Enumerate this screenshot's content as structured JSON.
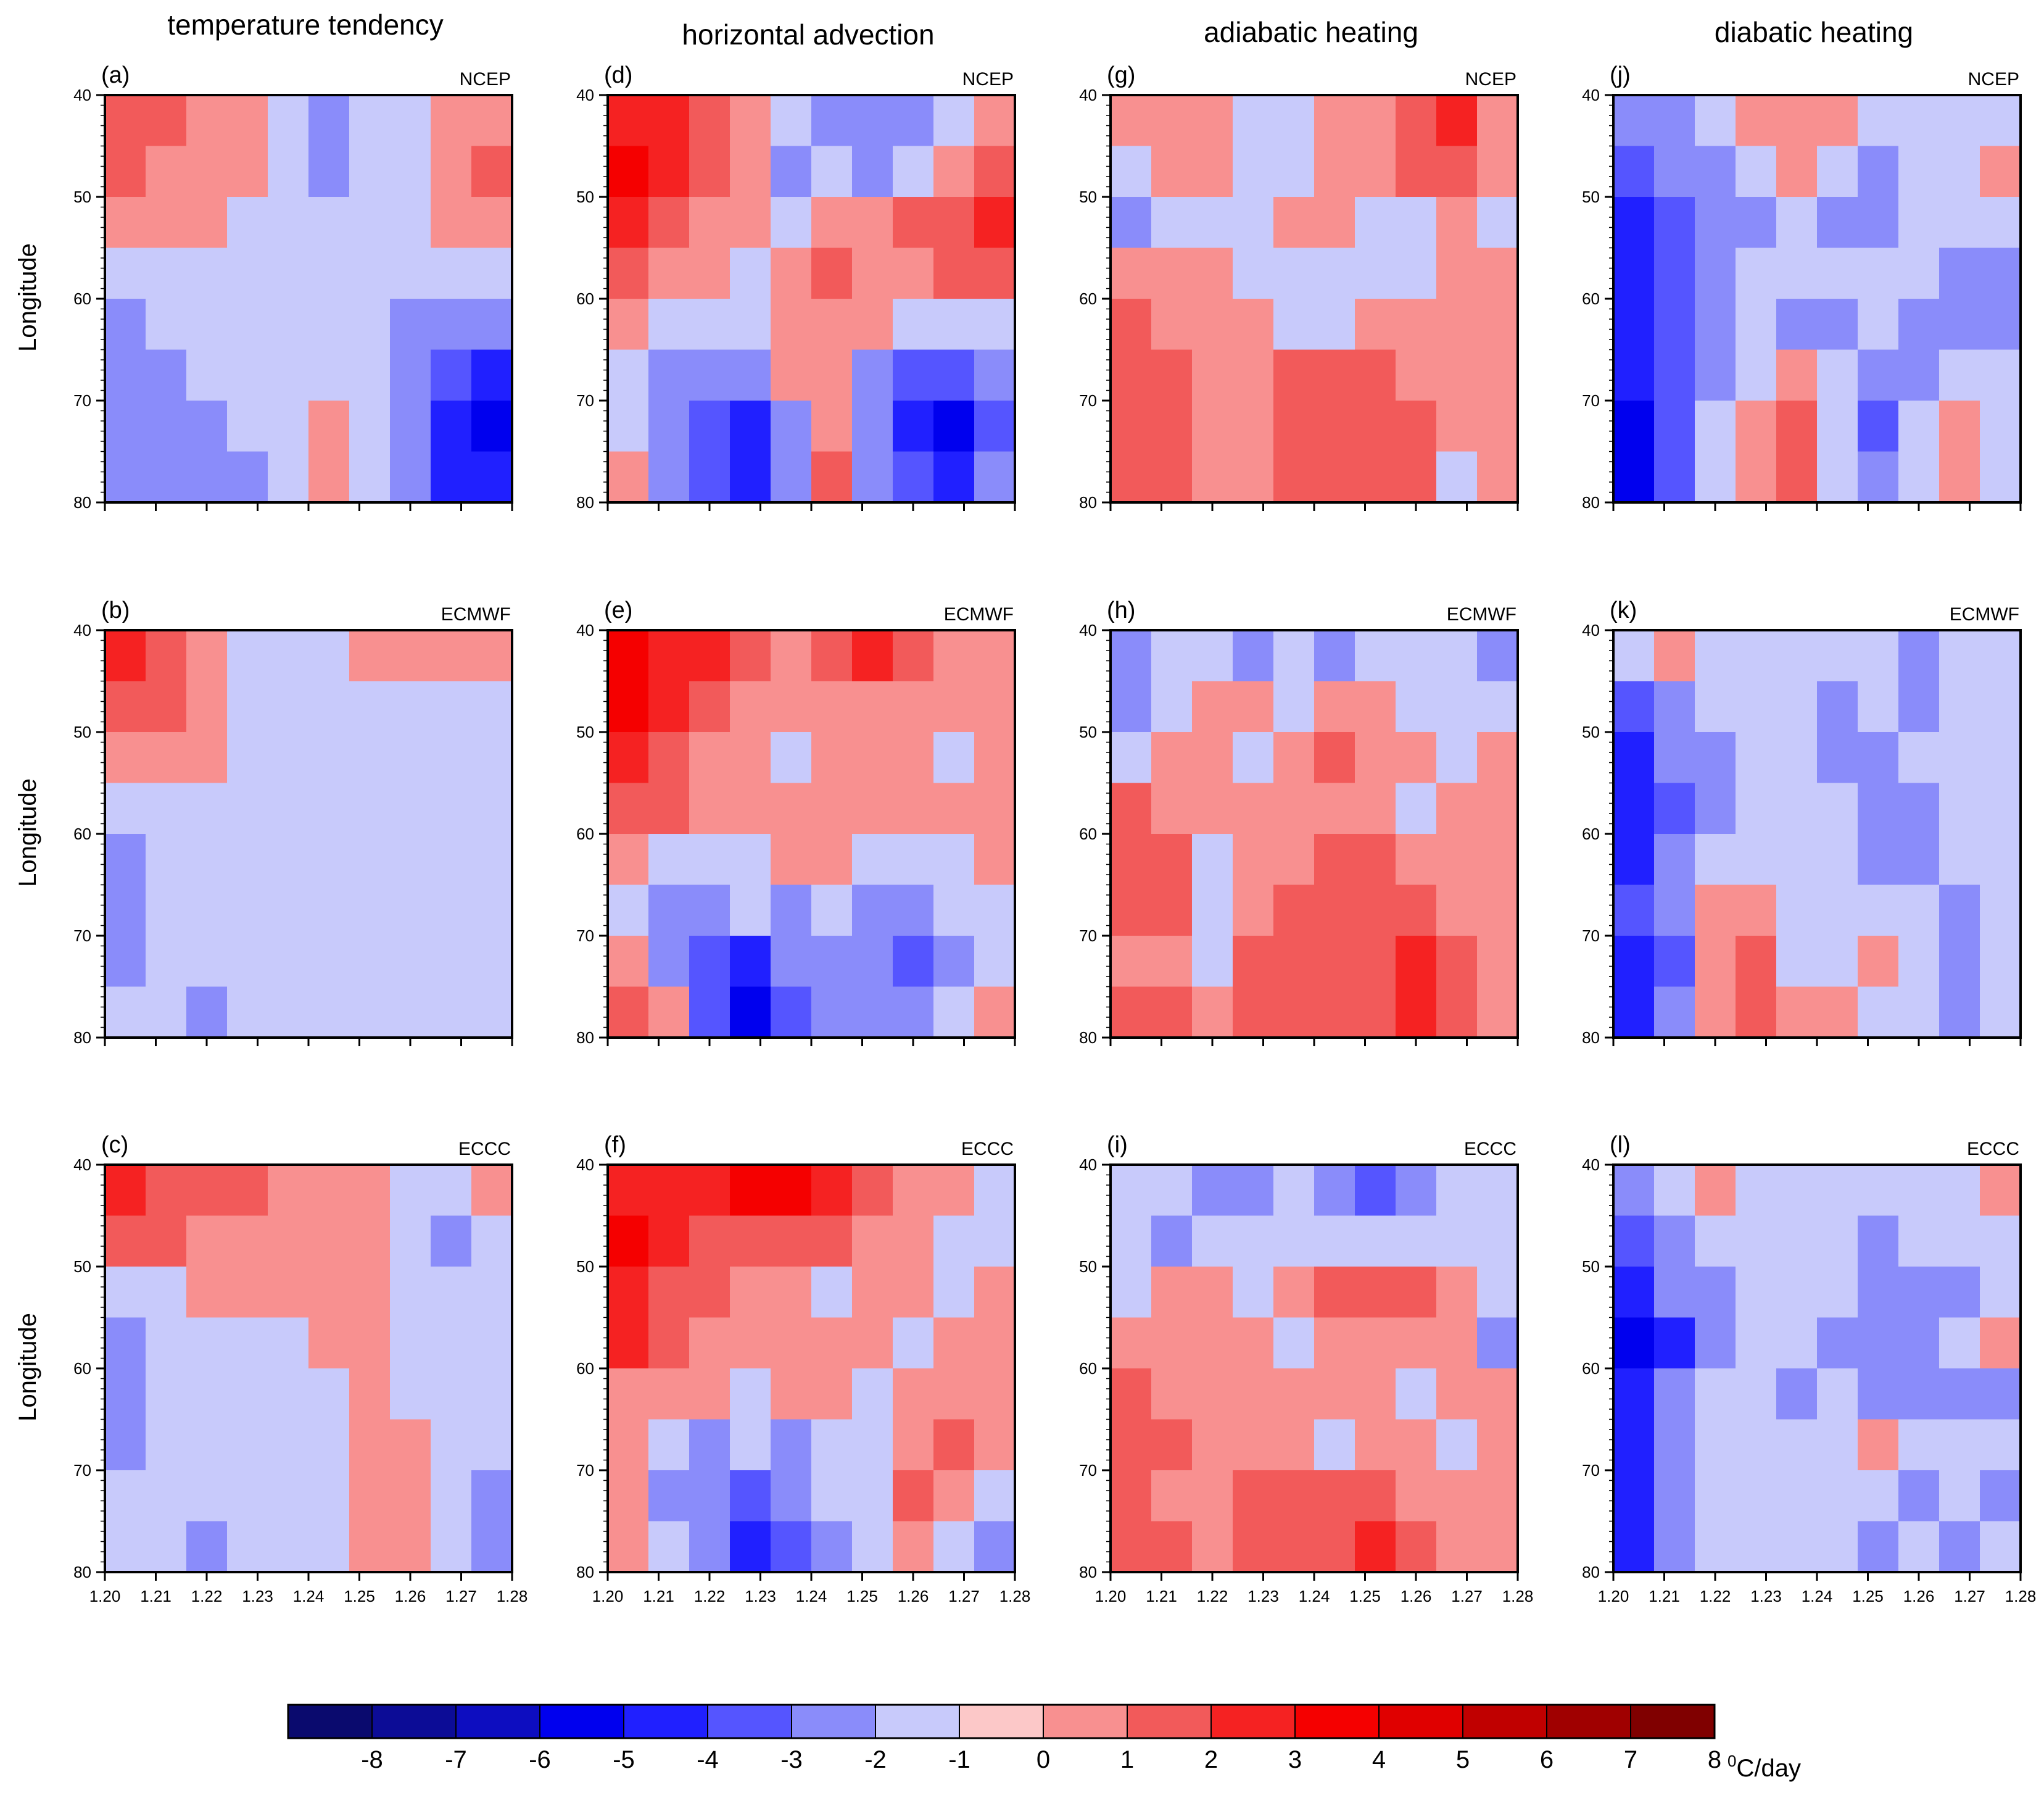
{
  "chart_data": {
    "type": "heatmap",
    "description_units": "°C/day",
    "column_titles": [
      "temperature tendency",
      "horizontal advection",
      "adiabatic heating",
      "diabatic heating"
    ],
    "row_sources": [
      "NCEP",
      "ECMWF",
      "ECCC"
    ],
    "panel_labels": [
      [
        "(a)",
        "(d)",
        "(g)",
        "(j)"
      ],
      [
        "(b)",
        "(e)",
        "(h)",
        "(k)"
      ],
      [
        "(c)",
        "(f)",
        "(i)",
        "(l)"
      ]
    ],
    "ylabel": "Longitude",
    "x_ticks": [
      "1.20",
      "1.21",
      "1.22",
      "1.23",
      "1.24",
      "1.25",
      "1.26",
      "1.27",
      "1.28"
    ],
    "y_ticks": [
      "40",
      "50",
      "60",
      "70",
      "80"
    ],
    "xlim": [
      1.2,
      1.28
    ],
    "ylim": [
      40,
      80
    ],
    "colorbar": {
      "levels": [
        -8,
        -7,
        -6,
        -5,
        -4,
        -3,
        -2,
        -1,
        0,
        1,
        2,
        3,
        4,
        5,
        6,
        7,
        8
      ],
      "labels": [
        "-8",
        "-7",
        "-6",
        "-5",
        "-4",
        "-3",
        "-2",
        "-1",
        "0",
        "1",
        "2",
        "3",
        "4",
        "5",
        "6",
        "7",
        "8"
      ],
      "colors": [
        "#0a0a6e",
        "#0c0c96",
        "#0d0dc0",
        "#0000ee",
        "#2020ff",
        "#5555ff",
        "#8a8cfa",
        "#c8cafb",
        "#fcc8c8",
        "#f89090",
        "#f25a5a",
        "#f52222",
        "#f50000",
        "#e00000",
        "#c00000",
        "#a00000",
        "#800000"
      ],
      "units_label": "C/day",
      "units_superscript": "0"
    },
    "panels": [
      {
        "id": "a",
        "values": [
          [
            2,
            2,
            1,
            1,
            -1,
            -2,
            -1,
            -1,
            1,
            1
          ],
          [
            2,
            1,
            1,
            1,
            -1,
            -2,
            -1,
            -1,
            1,
            2
          ],
          [
            1,
            1,
            1,
            -1,
            -1,
            -1,
            -1,
            -1,
            1,
            1
          ],
          [
            -1,
            -1,
            -1,
            -1,
            -1,
            -1,
            -1,
            -1,
            -1,
            -1
          ],
          [
            -2,
            -1,
            -1,
            -1,
            -1,
            -1,
            -1,
            -2,
            -2,
            -2
          ],
          [
            -2,
            -2,
            -1,
            -1,
            -1,
            -1,
            -1,
            -2,
            -3,
            -4
          ],
          [
            -2,
            -2,
            -2,
            -1,
            -1,
            1,
            -1,
            -2,
            -4,
            -5
          ],
          [
            -2,
            -2,
            -2,
            -2,
            -1,
            1,
            -1,
            -2,
            -4,
            -4
          ]
        ]
      },
      {
        "id": "d",
        "values": [
          [
            3,
            3,
            2,
            1,
            -1,
            -2,
            -2,
            -2,
            -1,
            1
          ],
          [
            4,
            3,
            2,
            1,
            -2,
            -1,
            -2,
            -1,
            1,
            2
          ],
          [
            3,
            2,
            1,
            1,
            -1,
            1,
            1,
            2,
            2,
            3
          ],
          [
            2,
            1,
            1,
            -1,
            1,
            2,
            1,
            1,
            2,
            2
          ],
          [
            1,
            -1,
            -1,
            -1,
            1,
            1,
            1,
            -1,
            -1,
            -1
          ],
          [
            -1,
            -2,
            -2,
            -2,
            1,
            1,
            -2,
            -3,
            -3,
            -2
          ],
          [
            -1,
            -2,
            -3,
            -4,
            -2,
            1,
            -2,
            -4,
            -5,
            -3
          ],
          [
            1,
            -2,
            -3,
            -4,
            -2,
            2,
            -2,
            -3,
            -4,
            -2
          ]
        ]
      },
      {
        "id": "g",
        "values": [
          [
            1,
            1,
            1,
            -1,
            -1,
            1,
            1,
            2,
            3,
            1
          ],
          [
            -1,
            1,
            1,
            -1,
            -1,
            1,
            1,
            2,
            2,
            1
          ],
          [
            -2,
            -1,
            -1,
            -1,
            1,
            1,
            -1,
            -1,
            1,
            -1
          ],
          [
            1,
            1,
            1,
            -1,
            -1,
            -1,
            -1,
            -1,
            1,
            1
          ],
          [
            2,
            1,
            1,
            1,
            -1,
            -1,
            1,
            1,
            1,
            1
          ],
          [
            2,
            2,
            1,
            1,
            2,
            2,
            2,
            1,
            1,
            1
          ],
          [
            2,
            2,
            1,
            1,
            2,
            2,
            2,
            2,
            1,
            1
          ],
          [
            2,
            2,
            1,
            1,
            2,
            2,
            2,
            2,
            -1,
            1
          ]
        ]
      },
      {
        "id": "j",
        "values": [
          [
            -2,
            -2,
            -1,
            1,
            1,
            1,
            -1,
            -1,
            -1,
            -1
          ],
          [
            -3,
            -2,
            -2,
            -1,
            1,
            -1,
            -2,
            -1,
            -1,
            1
          ],
          [
            -4,
            -3,
            -2,
            -2,
            -1,
            -2,
            -2,
            -1,
            -1,
            -1
          ],
          [
            -4,
            -3,
            -2,
            -1,
            -1,
            -1,
            -1,
            -1,
            -2,
            -2
          ],
          [
            -4,
            -3,
            -2,
            -1,
            -2,
            -2,
            -1,
            -2,
            -2,
            -2
          ],
          [
            -4,
            -3,
            -2,
            -1,
            1,
            -1,
            -2,
            -2,
            -1,
            -1
          ],
          [
            -5,
            -3,
            -1,
            1,
            2,
            -1,
            -3,
            -1,
            1,
            -1
          ],
          [
            -5,
            -3,
            -1,
            1,
            2,
            -1,
            -2,
            -1,
            1,
            -1
          ]
        ]
      },
      {
        "id": "b",
        "values": [
          [
            3,
            2,
            1,
            -1,
            -1,
            -1,
            1,
            1,
            1,
            1
          ],
          [
            2,
            2,
            1,
            -1,
            -1,
            -1,
            -1,
            -1,
            -1,
            -1
          ],
          [
            1,
            1,
            1,
            -1,
            -1,
            -1,
            -1,
            -1,
            -1,
            -1
          ],
          [
            -1,
            -1,
            -1,
            -1,
            -1,
            -1,
            -1,
            -1,
            -1,
            -1
          ],
          [
            -2,
            -1,
            -1,
            -1,
            -1,
            -1,
            -1,
            -1,
            -1,
            -1
          ],
          [
            -2,
            -1,
            -1,
            -1,
            -1,
            -1,
            -1,
            -1,
            -1,
            -1
          ],
          [
            -2,
            -1,
            -1,
            -1,
            -1,
            -1,
            -1,
            -1,
            -1,
            -1
          ],
          [
            -1,
            -1,
            -2,
            -1,
            -1,
            -1,
            -1,
            -1,
            -1,
            -1
          ]
        ]
      },
      {
        "id": "e",
        "values": [
          [
            4,
            3,
            3,
            2,
            1,
            2,
            3,
            2,
            1,
            1
          ],
          [
            4,
            3,
            2,
            1,
            1,
            1,
            1,
            1,
            1,
            1
          ],
          [
            3,
            2,
            1,
            1,
            -1,
            1,
            1,
            1,
            -1,
            1
          ],
          [
            2,
            2,
            1,
            1,
            1,
            1,
            1,
            1,
            1,
            1
          ],
          [
            1,
            -1,
            -1,
            -1,
            1,
            1,
            -1,
            -1,
            -1,
            1
          ],
          [
            -1,
            -2,
            -2,
            -1,
            -2,
            -1,
            -2,
            -2,
            -1,
            -1
          ],
          [
            1,
            -2,
            -3,
            -4,
            -2,
            -2,
            -2,
            -3,
            -2,
            -1
          ],
          [
            2,
            1,
            -3,
            -5,
            -3,
            -2,
            -2,
            -2,
            -1,
            1
          ]
        ]
      },
      {
        "id": "h",
        "values": [
          [
            -2,
            -1,
            -1,
            -2,
            -1,
            -2,
            -1,
            -1,
            -1,
            -2
          ],
          [
            -2,
            -1,
            1,
            1,
            -1,
            1,
            1,
            -1,
            -1,
            -1
          ],
          [
            -1,
            1,
            1,
            -1,
            1,
            2,
            1,
            1,
            -1,
            1
          ],
          [
            2,
            1,
            1,
            1,
            1,
            1,
            1,
            -1,
            1,
            1
          ],
          [
            2,
            2,
            -1,
            1,
            1,
            2,
            2,
            1,
            1,
            1
          ],
          [
            2,
            2,
            -1,
            1,
            2,
            2,
            2,
            2,
            1,
            1
          ],
          [
            1,
            1,
            -1,
            2,
            2,
            2,
            2,
            3,
            2,
            1
          ],
          [
            2,
            2,
            1,
            2,
            2,
            2,
            2,
            3,
            2,
            1
          ]
        ]
      },
      {
        "id": "k",
        "values": [
          [
            -1,
            1,
            -1,
            -1,
            -1,
            -1,
            -1,
            -2,
            -1,
            -1
          ],
          [
            -3,
            -2,
            -1,
            -1,
            -1,
            -2,
            -1,
            -2,
            -1,
            -1
          ],
          [
            -4,
            -2,
            -2,
            -1,
            -1,
            -2,
            -2,
            -1,
            -1,
            -1
          ],
          [
            -4,
            -3,
            -2,
            -1,
            -1,
            -1,
            -2,
            -2,
            -1,
            -1
          ],
          [
            -4,
            -2,
            -1,
            -1,
            -1,
            -1,
            -2,
            -2,
            -1,
            -1
          ],
          [
            -3,
            -2,
            1,
            1,
            -1,
            -1,
            -1,
            -1,
            -2,
            -1
          ],
          [
            -4,
            -3,
            1,
            2,
            -1,
            -1,
            1,
            -1,
            -2,
            -1
          ],
          [
            -4,
            -2,
            1,
            2,
            1,
            1,
            -1,
            -1,
            -2,
            -1
          ]
        ]
      },
      {
        "id": "c",
        "values": [
          [
            3,
            2,
            2,
            2,
            1,
            1,
            1,
            -1,
            -1,
            1
          ],
          [
            2,
            2,
            1,
            1,
            1,
            1,
            1,
            -1,
            -2,
            -1
          ],
          [
            -1,
            -1,
            1,
            1,
            1,
            1,
            1,
            -1,
            -1,
            -1
          ],
          [
            -2,
            -1,
            -1,
            -1,
            -1,
            1,
            1,
            -1,
            -1,
            -1
          ],
          [
            -2,
            -1,
            -1,
            -1,
            -1,
            -1,
            1,
            -1,
            -1,
            -1
          ],
          [
            -2,
            -1,
            -1,
            -1,
            -1,
            -1,
            1,
            1,
            -1,
            -1
          ],
          [
            -1,
            -1,
            -1,
            -1,
            -1,
            -1,
            1,
            1,
            -1,
            -2
          ],
          [
            -1,
            -1,
            -2,
            -1,
            -1,
            -1,
            1,
            1,
            -1,
            -2
          ]
        ]
      },
      {
        "id": "f",
        "values": [
          [
            3,
            3,
            3,
            4,
            4,
            3,
            2,
            1,
            1,
            -1
          ],
          [
            4,
            3,
            2,
            2,
            2,
            2,
            1,
            1,
            -1,
            -1
          ],
          [
            3,
            2,
            2,
            1,
            1,
            -1,
            1,
            1,
            -1,
            1
          ],
          [
            3,
            2,
            1,
            1,
            1,
            1,
            1,
            -1,
            1,
            1
          ],
          [
            1,
            1,
            1,
            -1,
            1,
            1,
            -1,
            1,
            1,
            1
          ],
          [
            1,
            -1,
            -2,
            -1,
            -2,
            -1,
            -1,
            1,
            2,
            1
          ],
          [
            1,
            -2,
            -2,
            -3,
            -2,
            -1,
            -1,
            2,
            1,
            -1
          ],
          [
            1,
            -1,
            -2,
            -4,
            -3,
            -2,
            -1,
            1,
            -1,
            -2
          ]
        ]
      },
      {
        "id": "i",
        "values": [
          [
            -1,
            -1,
            -2,
            -2,
            -1,
            -2,
            -3,
            -2,
            -1,
            -1
          ],
          [
            -1,
            -2,
            -1,
            -1,
            -1,
            -1,
            -1,
            -1,
            -1,
            -1
          ],
          [
            -1,
            1,
            1,
            -1,
            1,
            2,
            2,
            2,
            1,
            -1
          ],
          [
            1,
            1,
            1,
            1,
            -1,
            1,
            1,
            1,
            1,
            -2
          ],
          [
            2,
            1,
            1,
            1,
            1,
            1,
            1,
            -1,
            1,
            1
          ],
          [
            2,
            2,
            1,
            1,
            1,
            -1,
            1,
            1,
            -1,
            1
          ],
          [
            2,
            1,
            1,
            2,
            2,
            2,
            2,
            1,
            1,
            1
          ],
          [
            2,
            2,
            1,
            2,
            2,
            2,
            3,
            2,
            1,
            1
          ]
        ]
      },
      {
        "id": "l",
        "values": [
          [
            -2,
            -1,
            1,
            -1,
            -1,
            -1,
            -1,
            -1,
            -1,
            1
          ],
          [
            -3,
            -2,
            -1,
            -1,
            -1,
            -1,
            -2,
            -1,
            -1,
            -1
          ],
          [
            -4,
            -2,
            -2,
            -1,
            -1,
            -1,
            -2,
            -2,
            -2,
            -1
          ],
          [
            -5,
            -4,
            -2,
            -1,
            -1,
            -2,
            -2,
            -2,
            -1,
            1
          ],
          [
            -4,
            -2,
            -1,
            -1,
            -2,
            -1,
            -2,
            -2,
            -2,
            -2
          ],
          [
            -4,
            -2,
            -1,
            -1,
            -1,
            -1,
            1,
            -1,
            -1,
            -1
          ],
          [
            -4,
            -2,
            -1,
            -1,
            -1,
            -1,
            -1,
            -2,
            -1,
            -2
          ],
          [
            -4,
            -2,
            -1,
            -1,
            -1,
            -1,
            -2,
            -1,
            -2,
            -1
          ]
        ]
      }
    ]
  }
}
